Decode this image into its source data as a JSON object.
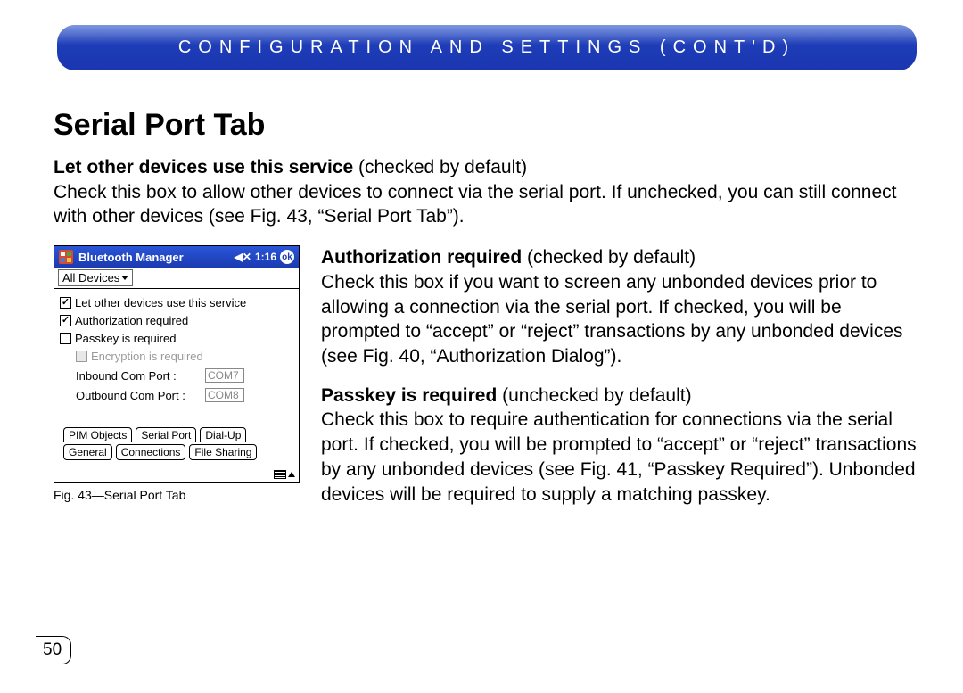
{
  "banner": {
    "text": "CONFIGURATION AND SETTINGS (CONT'D)"
  },
  "section_title": "Serial Port Tab",
  "intro": {
    "lead": "Let other devices use this service",
    "lead_suffix": " (checked by default)",
    "body": "Check this box to allow other devices to connect via the serial port. If unchecked, you can still connect with other devices (see Fig. 43, “Serial Port Tab”)."
  },
  "paragraphs": [
    {
      "lead": "Authorization required",
      "lead_suffix": " (checked by default)",
      "body": "Check this box if you want to screen any unbonded devices prior to allowing a connection via the serial port. If checked, you will be prompted to “accept” or “reject” transactions by any unbonded devices (see Fig. 40, “Authorization Dialog”)."
    },
    {
      "lead": "Passkey is required",
      "lead_suffix": " (unchecked by default)",
      "body": "Check this box to require authentication for connections via the serial port. If checked, you will be prompted to “accept” or “reject” transactions by any unbonded devices (see Fig. 41, “Passkey Required”). Unbonded devices will be required to supply a matching passkey."
    }
  ],
  "figure": {
    "caption": "Fig. 43—Serial Port Tab",
    "titlebar": {
      "app": "Bluetooth Manager",
      "time": "1:16"
    },
    "combo": "All Devices",
    "checkboxes": {
      "let_other": {
        "label": "Let other devices use this service",
        "checked": true
      },
      "auth": {
        "label": "Authorization required",
        "checked": true
      },
      "passkey": {
        "label": "Passkey is required",
        "checked": false
      },
      "encryption": {
        "label": "Encryption is required",
        "checked": false
      }
    },
    "ports": {
      "inbound": {
        "label": "Inbound Com Port :",
        "value": "COM7"
      },
      "outbound": {
        "label": "Outbound Com Port :",
        "value": "COM8"
      }
    },
    "tabs_row1": [
      "PIM Objects",
      "Serial Port",
      "Dial-Up"
    ],
    "tabs_row2": [
      "General",
      "Connections",
      "File Sharing"
    ]
  },
  "page_number": "50",
  "colors": {
    "banner_bg": "#1e3db8",
    "banner_text": "#ffffff",
    "text": "#000000",
    "disabled": "#9a9a9a"
  }
}
